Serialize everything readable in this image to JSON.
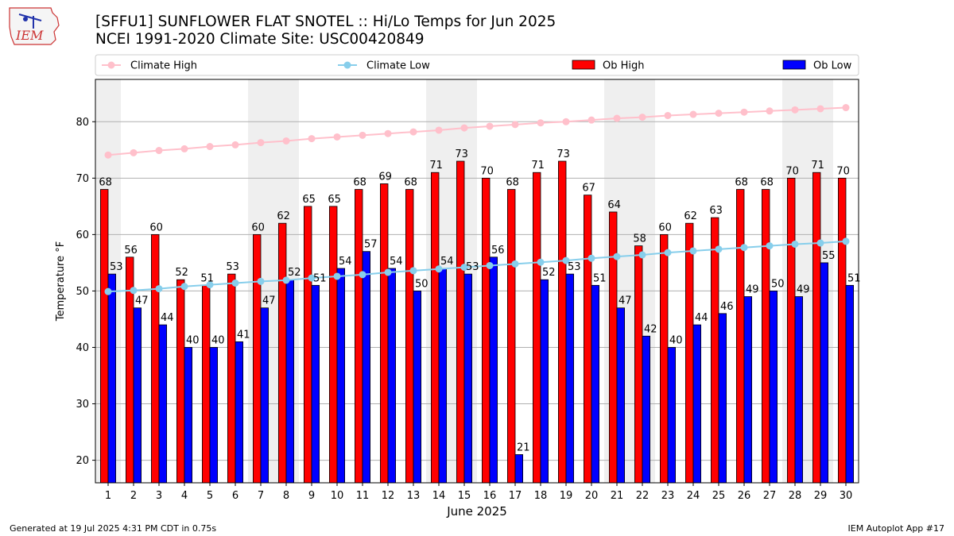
{
  "logo": {
    "text": "IEM"
  },
  "header": {
    "title": "[SFFU1] SUNFLOWER FLAT SNOTEL :: Hi/Lo Temps for Jun 2025",
    "subtitle": "NCEI 1991-2020 Climate Site: USC00420849"
  },
  "footer": {
    "left": "Generated at 19 Jul 2025 4:31 PM CDT in 0.75s",
    "right": "IEM Autoplot App #17"
  },
  "chart_data": {
    "type": "bar",
    "xlabel": "June 2025",
    "ylabel": "Temperature °F",
    "ylim": [
      16,
      87.5
    ],
    "yticks": [
      20,
      30,
      40,
      50,
      60,
      70,
      80
    ],
    "grid": true,
    "legend_position": "top",
    "weekend_shading": true,
    "weekend_days": [
      1,
      7,
      8,
      14,
      15,
      21,
      22,
      28,
      29
    ],
    "categories": [
      "1",
      "2",
      "3",
      "4",
      "5",
      "6",
      "7",
      "8",
      "9",
      "10",
      "11",
      "12",
      "13",
      "14",
      "15",
      "16",
      "17",
      "18",
      "19",
      "20",
      "21",
      "22",
      "23",
      "24",
      "25",
      "26",
      "27",
      "28",
      "29",
      "30"
    ],
    "series": [
      {
        "name": "Climate High",
        "kind": "line",
        "color": "#FFC0CB",
        "values": [
          74.1,
          74.5,
          74.9,
          75.2,
          75.6,
          75.9,
          76.3,
          76.6,
          77.0,
          77.3,
          77.6,
          77.9,
          78.2,
          78.5,
          78.9,
          79.2,
          79.5,
          79.8,
          80.0,
          80.3,
          80.6,
          80.8,
          81.1,
          81.3,
          81.5,
          81.7,
          81.9,
          82.1,
          82.3,
          82.5
        ]
      },
      {
        "name": "Climate Low",
        "kind": "line",
        "color": "#87CEEB",
        "values": [
          49.9,
          50.1,
          50.4,
          50.8,
          51.1,
          51.4,
          51.7,
          51.9,
          52.3,
          52.6,
          52.9,
          53.3,
          53.6,
          53.9,
          54.2,
          54.5,
          54.8,
          55.1,
          55.4,
          55.8,
          56.1,
          56.4,
          56.8,
          57.1,
          57.4,
          57.7,
          58.0,
          58.3,
          58.5,
          58.8
        ]
      },
      {
        "name": "Ob High",
        "kind": "bar",
        "color": "#FF0000",
        "values": [
          68,
          56,
          60,
          52,
          51,
          53,
          60,
          62,
          65,
          65,
          68,
          69,
          68,
          71,
          73,
          70,
          68,
          71,
          73,
          67,
          64,
          58,
          60,
          62,
          63,
          68,
          68,
          70,
          71,
          70
        ]
      },
      {
        "name": "Ob Low",
        "kind": "bar",
        "color": "#0000FF",
        "values": [
          53,
          47,
          44,
          40,
          40,
          41,
          47,
          52,
          51,
          54,
          57,
          54,
          50,
          54,
          53,
          56,
          21,
          52,
          53,
          51,
          47,
          42,
          40,
          44,
          46,
          49,
          50,
          49,
          55,
          51
        ]
      }
    ]
  }
}
